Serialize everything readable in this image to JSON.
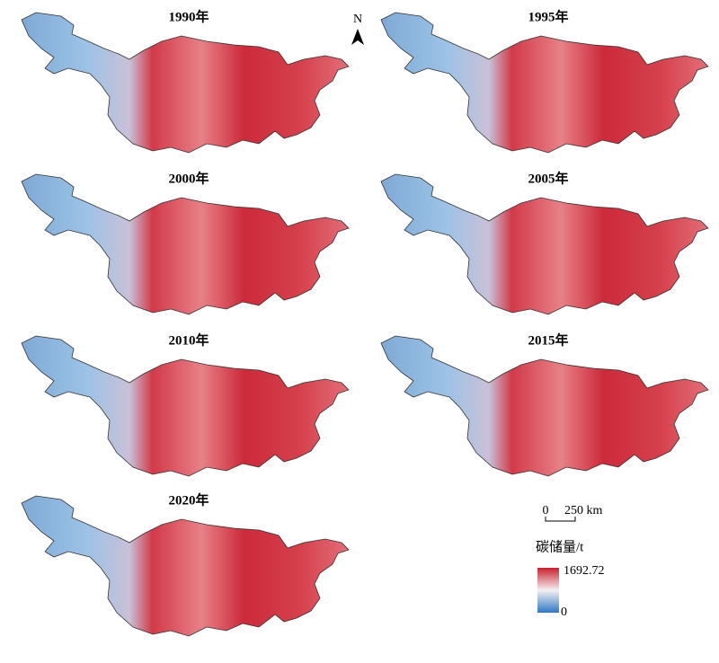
{
  "maps": [
    {
      "title": "1990年"
    },
    {
      "title": "1995年"
    },
    {
      "title": "2000年"
    },
    {
      "title": "2005年"
    },
    {
      "title": "2010年"
    },
    {
      "title": "2015年"
    },
    {
      "title": "2020年"
    }
  ],
  "north_arrow": "N",
  "scale_bar": {
    "start": "0",
    "end": "250 km"
  },
  "legend": {
    "title": "碳储量/t",
    "max": "1692.72",
    "min": "0"
  }
}
